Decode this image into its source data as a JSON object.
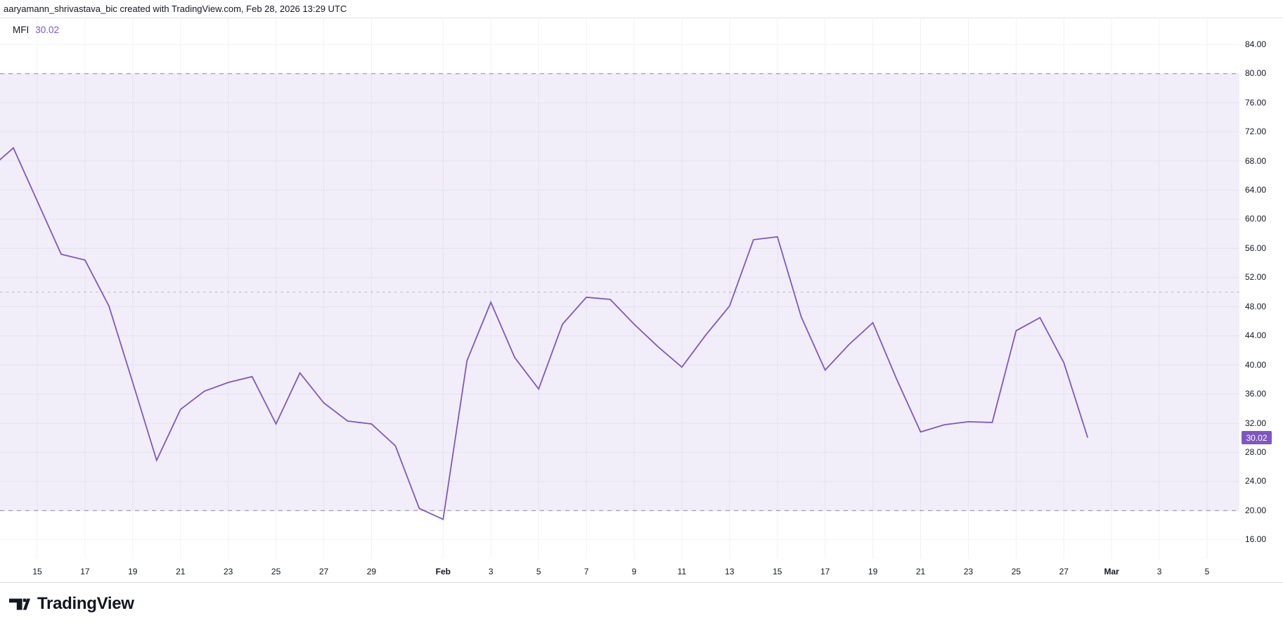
{
  "header": {
    "attribution": "aaryamann_shrivastava_bic created with TradingView.com, Feb 28, 2026 13:29 UTC"
  },
  "legend": {
    "indicator": "MFI",
    "value": "30.02"
  },
  "chart_data": {
    "type": "line",
    "title": "MFI",
    "legend_position": "top-left",
    "grid": true,
    "visible_value_range": [
      16,
      84
    ],
    "band": {
      "from": 20,
      "to": 80,
      "fill": "rgba(126,87,194,0.1)"
    },
    "hlines": [
      {
        "value": 80,
        "style": "dashed",
        "role": "overbought"
      },
      {
        "value": 50,
        "style": "dashed",
        "role": "middle"
      },
      {
        "value": 20,
        "style": "dashed",
        "role": "oversold"
      }
    ],
    "y_ticks": [
      84,
      80,
      76,
      72,
      68,
      64,
      60,
      56,
      52,
      48,
      44,
      40,
      36,
      32,
      28,
      24,
      20,
      16
    ],
    "x_ticks": [
      {
        "d": 15,
        "label": "15",
        "month": false
      },
      {
        "d": 17,
        "label": "17",
        "month": false
      },
      {
        "d": 19,
        "label": "19",
        "month": false
      },
      {
        "d": 21,
        "label": "21",
        "month": false
      },
      {
        "d": 23,
        "label": "23",
        "month": false
      },
      {
        "d": 25,
        "label": "25",
        "month": false
      },
      {
        "d": 27,
        "label": "27",
        "month": false
      },
      {
        "d": 29,
        "label": "29",
        "month": false
      },
      {
        "d": 32,
        "label": "Feb",
        "month": true
      },
      {
        "d": 34,
        "label": "3",
        "month": false
      },
      {
        "d": 36,
        "label": "5",
        "month": false
      },
      {
        "d": 38,
        "label": "7",
        "month": false
      },
      {
        "d": 40,
        "label": "9",
        "month": false
      },
      {
        "d": 42,
        "label": "11",
        "month": false
      },
      {
        "d": 44,
        "label": "13",
        "month": false
      },
      {
        "d": 46,
        "label": "15",
        "month": false
      },
      {
        "d": 48,
        "label": "17",
        "month": false
      },
      {
        "d": 50,
        "label": "19",
        "month": false
      },
      {
        "d": 52,
        "label": "21",
        "month": false
      },
      {
        "d": 54,
        "label": "23",
        "month": false
      },
      {
        "d": 56,
        "label": "25",
        "month": false
      },
      {
        "d": 58,
        "label": "27",
        "month": false
      },
      {
        "d": 60,
        "label": "Mar",
        "month": true
      },
      {
        "d": 62,
        "label": "3",
        "month": false
      },
      {
        "d": 64,
        "label": "5",
        "month": false
      }
    ],
    "series": [
      {
        "name": "MFI",
        "color": "#7e57c2",
        "points": [
          {
            "date": "Jan 13",
            "d": 13,
            "v": 66.9
          },
          {
            "date": "Jan 14",
            "d": 14,
            "v": 69.8
          },
          {
            "date": "Jan 15",
            "d": 15,
            "v": 62.5
          },
          {
            "date": "Jan 16",
            "d": 16,
            "v": 55.2
          },
          {
            "date": "Jan 17",
            "d": 17,
            "v": 54.4
          },
          {
            "date": "Jan 18",
            "d": 18,
            "v": 48.1
          },
          {
            "date": "Jan 19",
            "d": 19,
            "v": 37.6
          },
          {
            "date": "Jan 20",
            "d": 20,
            "v": 26.9
          },
          {
            "date": "Jan 21",
            "d": 21,
            "v": 33.9
          },
          {
            "date": "Jan 22",
            "d": 22,
            "v": 36.4
          },
          {
            "date": "Jan 23",
            "d": 23,
            "v": 37.6
          },
          {
            "date": "Jan 24",
            "d": 24,
            "v": 38.4
          },
          {
            "date": "Jan 25",
            "d": 25,
            "v": 31.9
          },
          {
            "date": "Jan 26",
            "d": 26,
            "v": 38.9
          },
          {
            "date": "Jan 27",
            "d": 27,
            "v": 34.8
          },
          {
            "date": "Jan 28",
            "d": 28,
            "v": 32.3
          },
          {
            "date": "Jan 29",
            "d": 29,
            "v": 31.9
          },
          {
            "date": "Jan 30",
            "d": 30,
            "v": 28.9
          },
          {
            "date": "Jan 31",
            "d": 31,
            "v": 20.3
          },
          {
            "date": "Feb 1",
            "d": 32,
            "v": 18.8
          },
          {
            "date": "Feb 2",
            "d": 33,
            "v": 40.6
          },
          {
            "date": "Feb 3",
            "d": 34,
            "v": 48.6
          },
          {
            "date": "Feb 4",
            "d": 35,
            "v": 41.0
          },
          {
            "date": "Feb 5",
            "d": 36,
            "v": 36.7
          },
          {
            "date": "Feb 6",
            "d": 37,
            "v": 45.6
          },
          {
            "date": "Feb 7",
            "d": 38,
            "v": 49.3
          },
          {
            "date": "Feb 8",
            "d": 39,
            "v": 49.0
          },
          {
            "date": "Feb 9",
            "d": 40,
            "v": 45.6
          },
          {
            "date": "Feb 10",
            "d": 41,
            "v": 42.5
          },
          {
            "date": "Feb 11",
            "d": 42,
            "v": 39.7
          },
          {
            "date": "Feb 12",
            "d": 43,
            "v": 44.1
          },
          {
            "date": "Feb 13",
            "d": 44,
            "v": 48.1
          },
          {
            "date": "Feb 14",
            "d": 45,
            "v": 57.2
          },
          {
            "date": "Feb 15",
            "d": 46,
            "v": 57.6
          },
          {
            "date": "Feb 16",
            "d": 47,
            "v": 46.6
          },
          {
            "date": "Feb 17",
            "d": 48,
            "v": 39.3
          },
          {
            "date": "Feb 18",
            "d": 49,
            "v": 42.8
          },
          {
            "date": "Feb 19",
            "d": 50,
            "v": 45.8
          },
          {
            "date": "Feb 20",
            "d": 51,
            "v": 38.0
          },
          {
            "date": "Feb 21",
            "d": 52,
            "v": 30.8
          },
          {
            "date": "Feb 22",
            "d": 53,
            "v": 31.8
          },
          {
            "date": "Feb 23",
            "d": 54,
            "v": 32.2
          },
          {
            "date": "Feb 24",
            "d": 55,
            "v": 32.1
          },
          {
            "date": "Feb 25",
            "d": 56,
            "v": 44.7
          },
          {
            "date": "Feb 26",
            "d": 57,
            "v": 46.5
          },
          {
            "date": "Feb 27",
            "d": 58,
            "v": 40.3
          },
          {
            "date": "Feb 28",
            "d": 59,
            "v": 30.02
          }
        ]
      }
    ],
    "last_value": "30.02"
  },
  "y_axis": {
    "badge": {
      "text": "30.02",
      "bg": "#7e57c2",
      "text_color": "#ffffff"
    },
    "label_format": "0.00"
  },
  "footer": {
    "logo_text": "TradingView"
  },
  "colors": {
    "accent": "#7e57c2",
    "line": "#7e57c2",
    "band_fill": "rgba(126,87,194,0.1)",
    "hline": "#787b86",
    "grid": "#f0f2f6",
    "border": "#e0e3eb",
    "text": "#131722",
    "background": "#ffffff"
  }
}
